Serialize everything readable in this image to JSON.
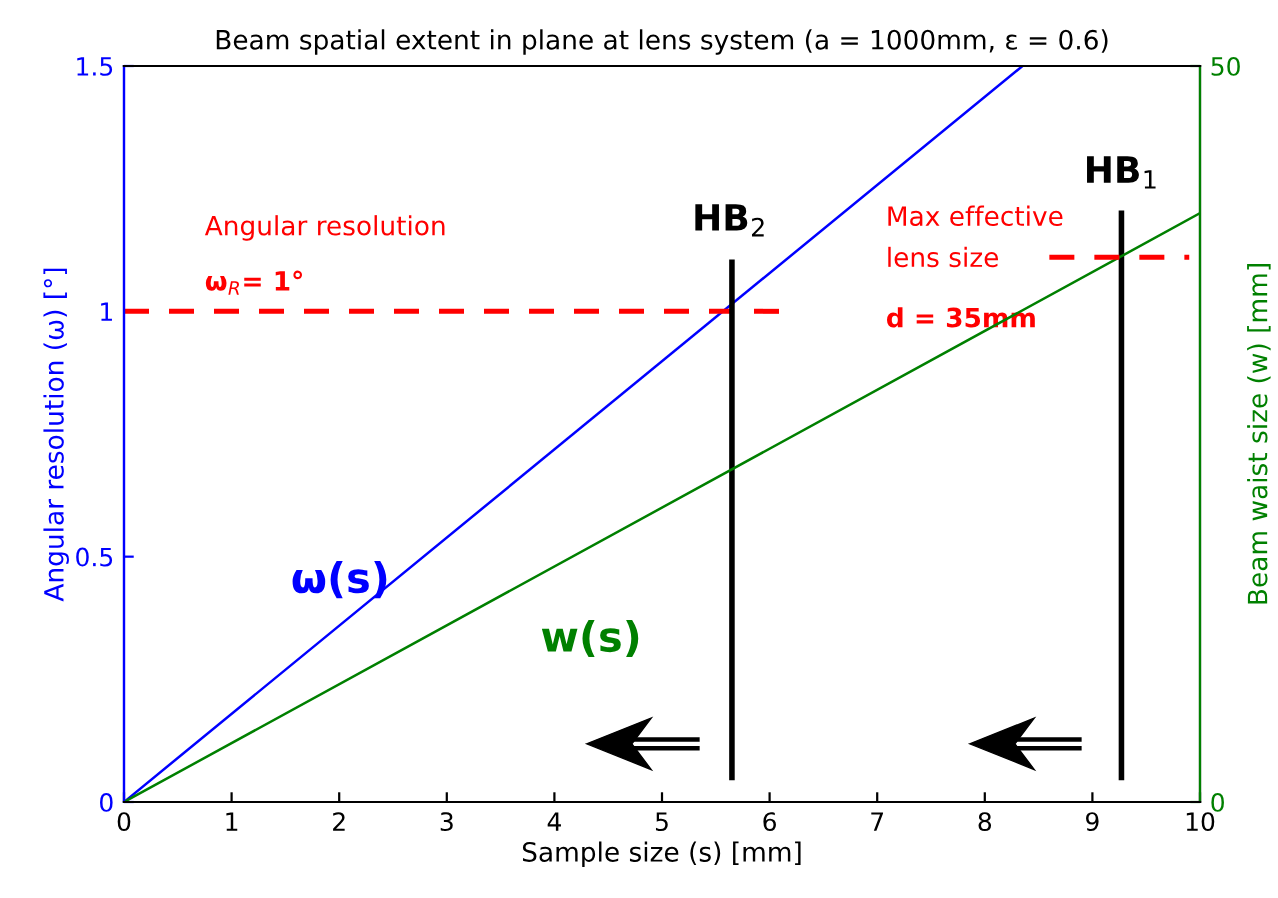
{
  "chart_data": {
    "type": "line",
    "title": "Beam spatial extent in plane at lens system (a = 1000mm, ε = 0.6)",
    "xlabel": "Sample size (s) [mm]",
    "ylabel": "Angular resolution (ω) [°]",
    "y2label": "Beam waist size (w) [mm]",
    "xlim": [
      0,
      10
    ],
    "xticks": [
      0,
      1,
      2,
      3,
      4,
      5,
      6,
      7,
      8,
      9,
      10
    ],
    "ylim": [
      0,
      1.5
    ],
    "yticks": [
      0,
      0.5,
      1,
      1.5
    ],
    "y2lim": [
      0,
      50
    ],
    "y2ticks": [
      0,
      50
    ],
    "grid": false,
    "legend": false,
    "series": [
      {
        "name": "ω(s)",
        "color": "#0000ff",
        "x": [
          0,
          8.35
        ],
        "values": [
          0,
          1.5
        ]
      },
      {
        "name": "w(s)",
        "color": "#008000",
        "axis": "y2",
        "x": [
          0,
          10
        ],
        "values": [
          0,
          40
        ]
      },
      {
        "color": "#ff0000",
        "line_style": "dashed",
        "x": [
          0,
          6.1
        ],
        "values": [
          1,
          1
        ]
      },
      {
        "color": "#ff0000",
        "line_style": "dashed",
        "axis": "y2",
        "x": [
          8.6,
          9.9
        ],
        "values": [
          37,
          37
        ]
      },
      {
        "color": "#000000",
        "x": [
          5.65,
          5.65
        ],
        "values": [
          0.05,
          1.1
        ]
      },
      {
        "color": "#000000",
        "x": [
          9.27,
          9.27
        ],
        "values": [
          0.05,
          1.2
        ]
      }
    ],
    "annotations": [
      "Angular resolution",
      "ω$_{R}$= 1°",
      "HB$_{2}$",
      "HB$_{1}$",
      "Max effective",
      "lens size",
      "d = 35mm"
    ]
  }
}
